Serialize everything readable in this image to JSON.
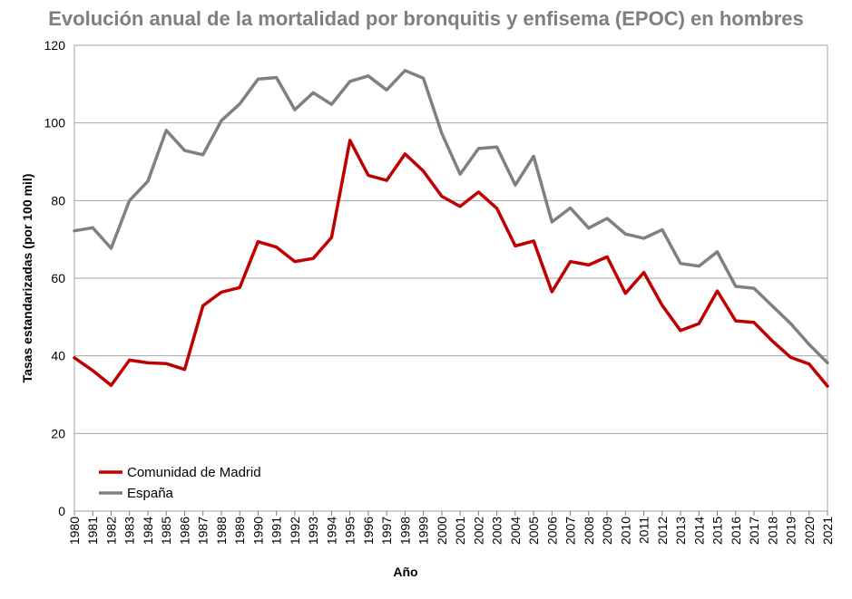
{
  "chart_data": {
    "type": "line",
    "title": "Evolución anual de la mortalidad por bronquitis y enfisema (EPOC) en hombres",
    "xlabel": "Año",
    "ylabel": "Tasas estandarizadas (por 100 mil)",
    "ylim": [
      0,
      120
    ],
    "yticks": [
      "0",
      "20",
      "40",
      "60",
      "80",
      "100",
      "120"
    ],
    "grid": true,
    "legend_position": "bottom-left",
    "categories": [
      "1980",
      "1981",
      "1982",
      "1983",
      "1984",
      "1985",
      "1986",
      "1987",
      "1988",
      "1989",
      "1990",
      "1991",
      "1992",
      "1993",
      "1994",
      "1995",
      "1996",
      "1997",
      "1998",
      "1999",
      "2000",
      "2001",
      "2002",
      "2003",
      "2004",
      "2005",
      "2006",
      "2007",
      "2008",
      "2009",
      "2010",
      "2011",
      "2012",
      "2013",
      "2014",
      "2015",
      "2016",
      "2017",
      "2018",
      "2019",
      "2020",
      "2021"
    ],
    "series": [
      {
        "name": "Comunidad de Madrid",
        "color": "#c00000",
        "values": [
          39.5,
          36.2,
          32.4,
          38.9,
          38.2,
          38.0,
          36.5,
          52.9,
          56.4,
          57.6,
          69.4,
          68.0,
          64.3,
          65.1,
          70.5,
          95.5,
          86.5,
          85.2,
          92.0,
          87.6,
          81.1,
          78.5,
          82.2,
          78.0,
          68.3,
          69.6,
          56.5,
          64.3,
          63.4,
          65.5,
          56.1,
          61.5,
          53.0,
          46.5,
          48.3,
          56.7,
          49.0,
          48.6,
          43.8,
          39.6,
          37.9,
          32.2
        ]
      },
      {
        "name": "España",
        "color": "#808080",
        "values": [
          72.2,
          73.0,
          67.7,
          80.0,
          85.0,
          98.1,
          92.9,
          91.8,
          100.6,
          104.9,
          111.3,
          111.7,
          103.4,
          107.8,
          104.8,
          110.7,
          112.1,
          108.5,
          113.5,
          111.5,
          97.3,
          86.8,
          93.4,
          93.8,
          84.0,
          91.4,
          74.5,
          78.1,
          72.9,
          75.4,
          71.4,
          70.3,
          72.5,
          63.8,
          63.1,
          66.8,
          57.9,
          57.4,
          52.8,
          48.3,
          42.9,
          38.2
        ]
      }
    ]
  }
}
